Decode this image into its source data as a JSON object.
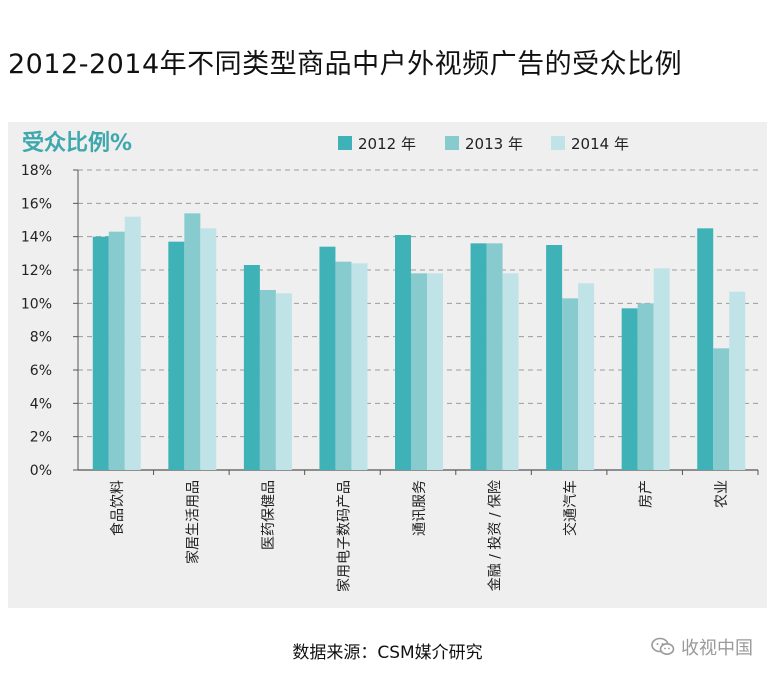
{
  "title": "2012-2014年不同类型商品中户外视频广告的受众比例",
  "source": "数据来源：CSM媒介研究",
  "watermark": {
    "text": "收视中国",
    "icon": "wechat-icon"
  },
  "colors": {
    "s2012": "#3fb2b8",
    "s2013": "#87cbcf",
    "s2014": "#bfe3e6",
    "ylabel": "#3fa8ad"
  },
  "chart_data": {
    "type": "bar",
    "title": "",
    "ylabel": "受众比例%",
    "xlabel": "",
    "ylim": [
      0,
      18
    ],
    "yticks": [
      0,
      2,
      4,
      6,
      8,
      10,
      12,
      14,
      16,
      18
    ],
    "ytick_labels": [
      "0%",
      "2%",
      "4%",
      "6%",
      "8%",
      "10%",
      "12%",
      "14%",
      "16%",
      "18%"
    ],
    "grid": true,
    "legend_position": "top",
    "categories": [
      "食品饮料",
      "家居生活用品",
      "医药保健品",
      "家用电子数码产品",
      "通讯服务",
      "金融 / 投资 / 保险",
      "交通汽车",
      "房产",
      "农业"
    ],
    "series": [
      {
        "name": "2012 年",
        "values": [
          14.0,
          13.7,
          12.3,
          13.4,
          14.1,
          13.6,
          13.5,
          9.7,
          14.5
        ]
      },
      {
        "name": "2013 年",
        "values": [
          14.3,
          15.4,
          10.8,
          12.5,
          11.8,
          13.6,
          10.3,
          10.0,
          7.3
        ]
      },
      {
        "name": "2014 年",
        "values": [
          15.2,
          14.5,
          10.6,
          12.4,
          11.8,
          11.8,
          11.2,
          12.1,
          10.7
        ]
      }
    ]
  }
}
